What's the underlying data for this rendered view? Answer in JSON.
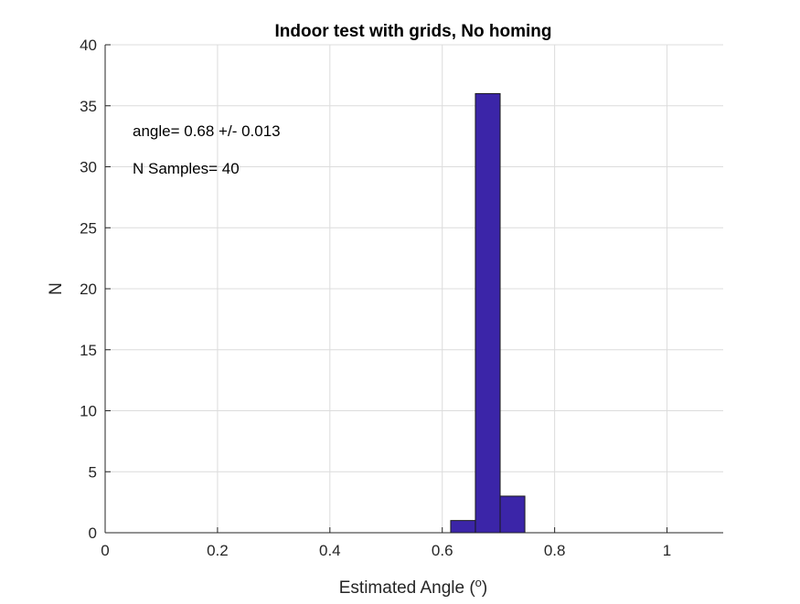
{
  "chart_data": {
    "type": "bar",
    "subtype": "histogram",
    "title": "Indoor test with grids, No homing",
    "xlabel": "Estimated Angle (",
    "xlabel_superscript": "o",
    "xlabel_suffix": ")",
    "ylabel": "N",
    "xlim": [
      0,
      1.1
    ],
    "ylim": [
      0,
      40
    ],
    "xticks": [
      0,
      0.2,
      0.4,
      0.6,
      0.8,
      1
    ],
    "xtick_labels": [
      "0",
      "0.2",
      "0.4",
      "0.6",
      "0.8",
      "1"
    ],
    "yticks": [
      0,
      5,
      10,
      15,
      20,
      25,
      30,
      35,
      40
    ],
    "ytick_labels": [
      "0",
      "5",
      "10",
      "15",
      "20",
      "25",
      "30",
      "35",
      "40"
    ],
    "grid": true,
    "bar_color": "#3b25a8",
    "bins": [
      {
        "x0": 0.615,
        "x1": 0.659,
        "count": 1
      },
      {
        "x0": 0.659,
        "x1": 0.703,
        "count": 36
      },
      {
        "x0": 0.703,
        "x1": 0.747,
        "count": 3
      }
    ],
    "annotations": [
      {
        "text": "angle= 0.68 +/- 0.013"
      },
      {
        "text": "N Samples= 40"
      }
    ]
  }
}
